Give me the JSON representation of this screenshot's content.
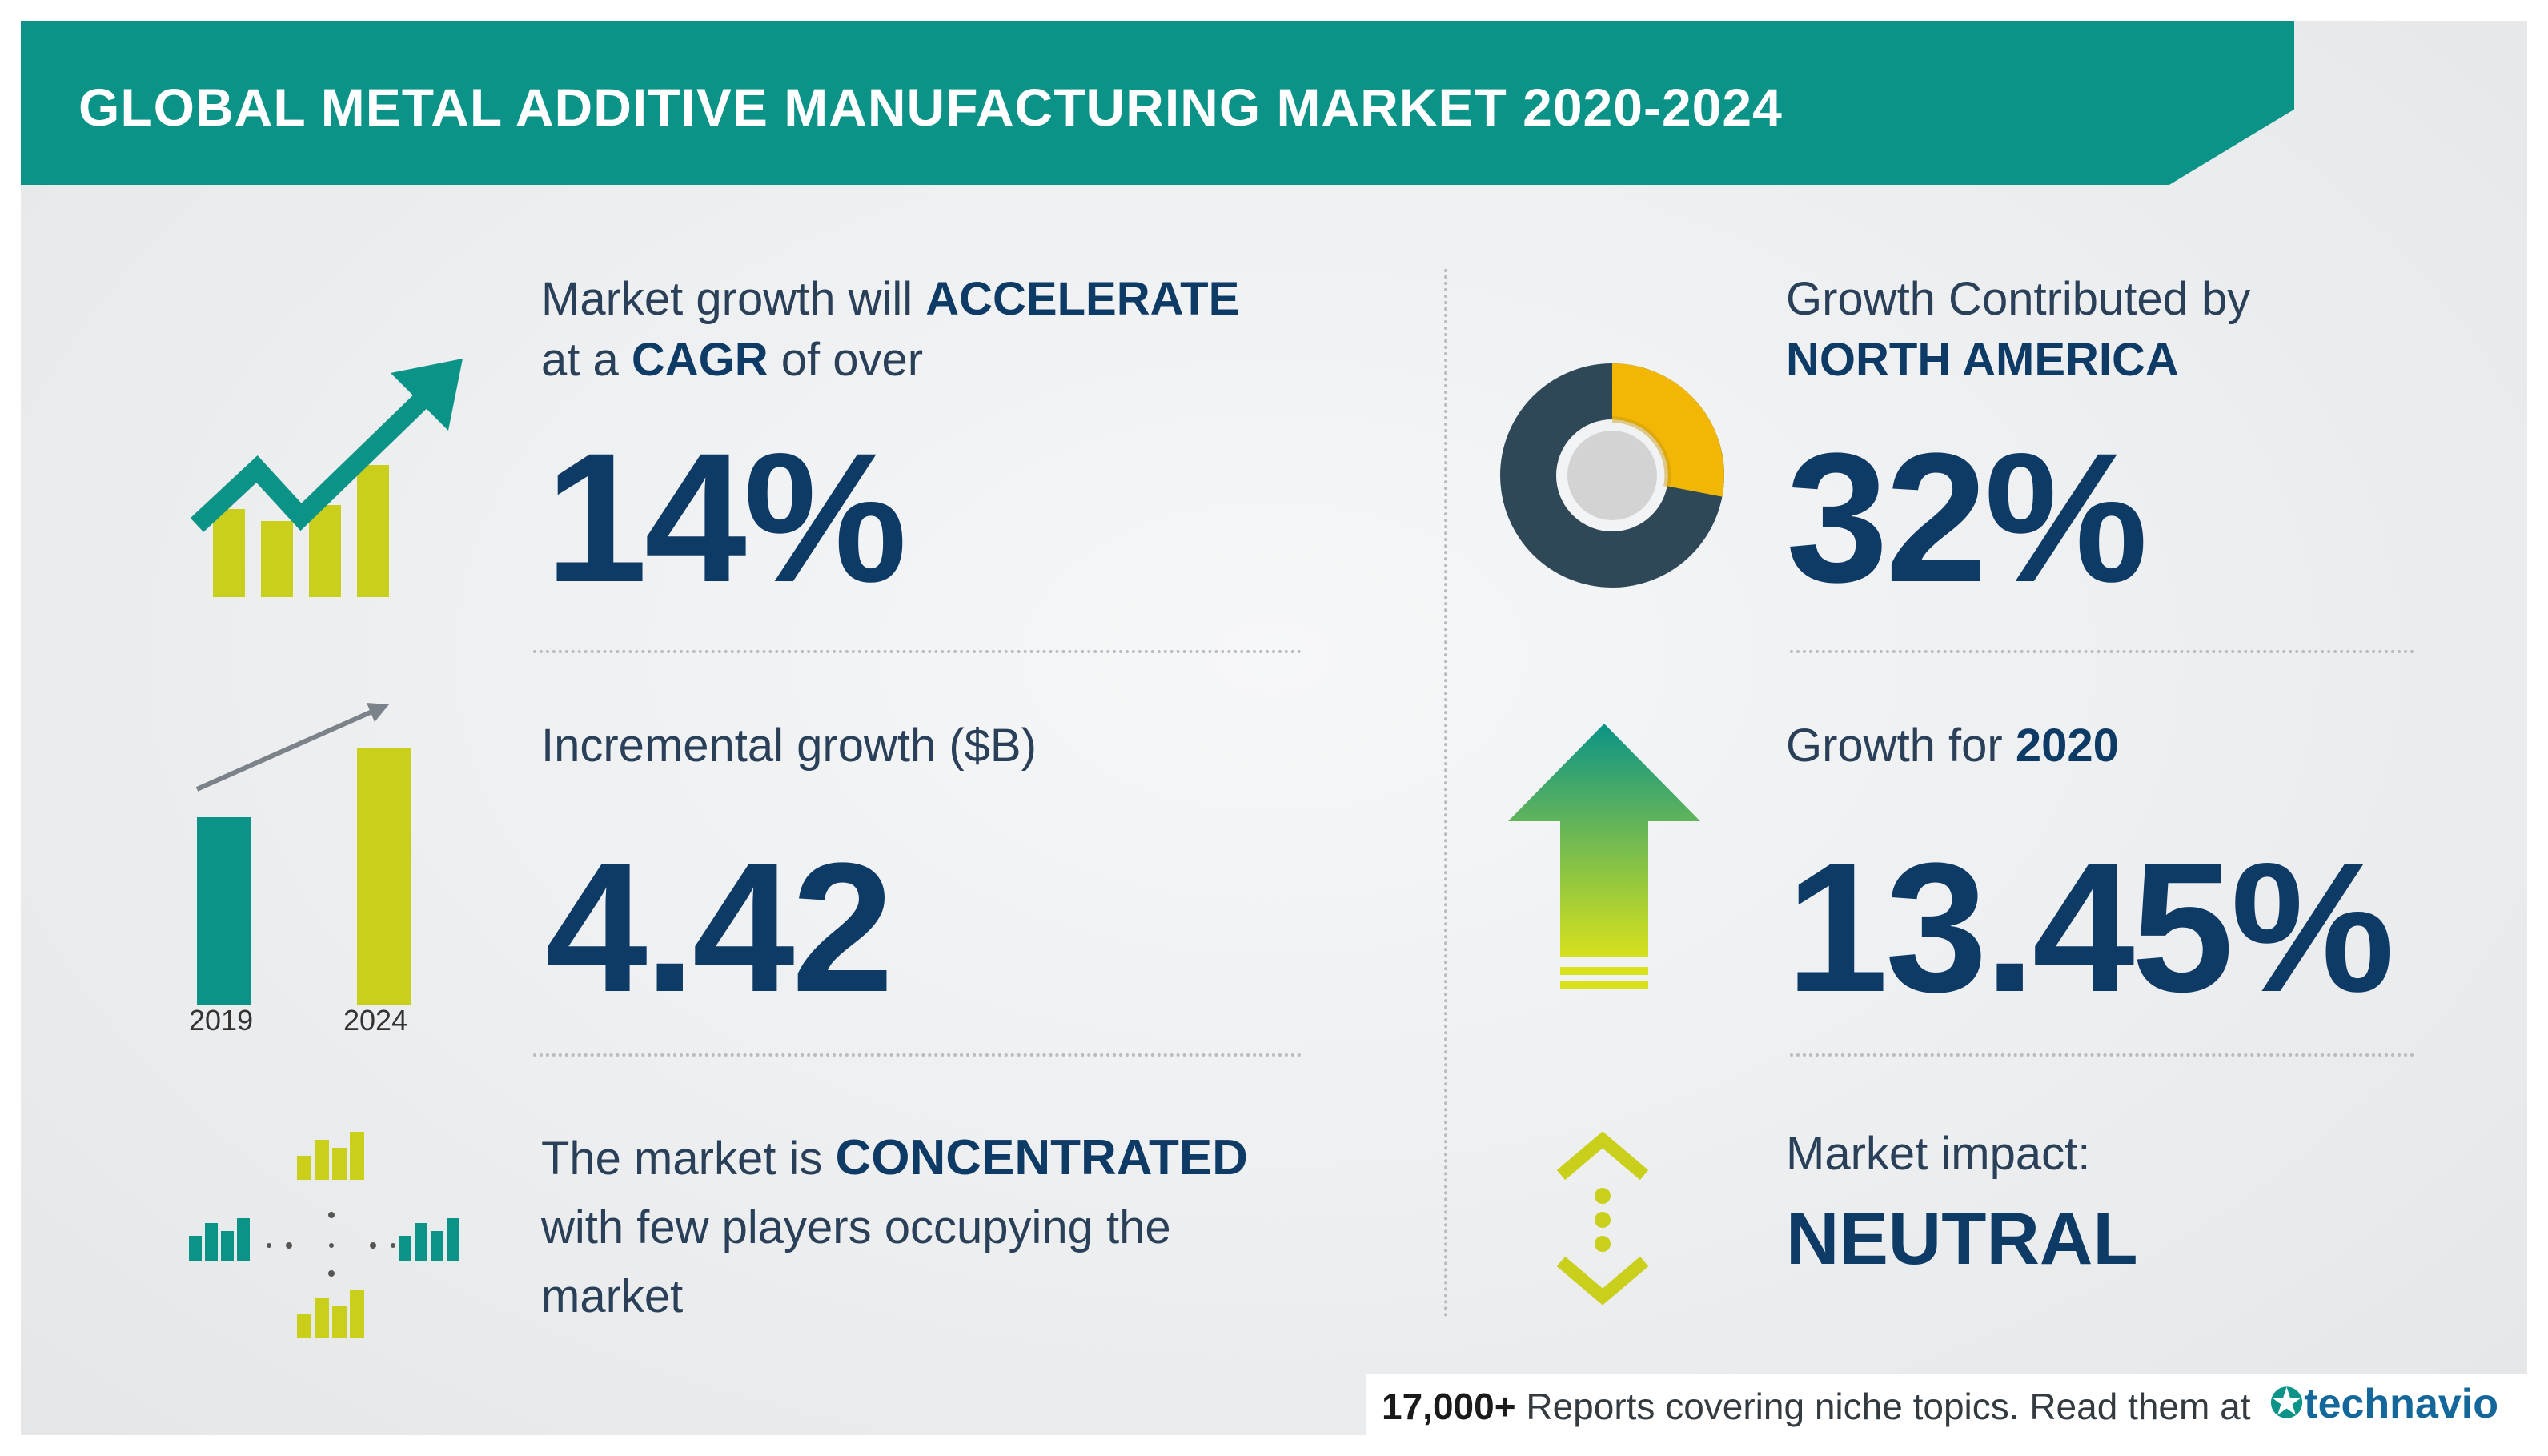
{
  "header": {
    "title": "GLOBAL METAL ADDITIVE MANUFACTURING MARKET 2020-2024"
  },
  "cagr": {
    "line1_prefix": "Market growth will",
    "line1_bold": "ACCELERATE",
    "line2_prefix": "at a",
    "line2_bold": "CAGR",
    "line2_suffix": "of over",
    "value": "14%"
  },
  "incremental": {
    "label": "Incremental growth ($B)",
    "value": "4.42",
    "year_start": "2019",
    "year_end": "2024"
  },
  "concentration": {
    "line1_prefix": "The market is",
    "line1_bold": "CONCENTRATED",
    "line2": "with few players occupying the",
    "line3": "market"
  },
  "region": {
    "line1": "Growth Contributed by",
    "line2": "NORTH AMERICA",
    "value": "32%"
  },
  "growth_year": {
    "label_prefix": "Growth for",
    "label_year": "2020",
    "value": "13.45%"
  },
  "impact": {
    "label": "Market impact:",
    "value": "NEUTRAL"
  },
  "footer": {
    "count": "17,000+",
    "text": "Reports covering niche topics. Read them at",
    "brand": "technavio"
  },
  "colors": {
    "teal": "#0b9387",
    "yellow": "#c9cf1b",
    "navy": "#0e3a66",
    "donut_dark": "#2f4858",
    "donut_accent": "#f2b705"
  }
}
